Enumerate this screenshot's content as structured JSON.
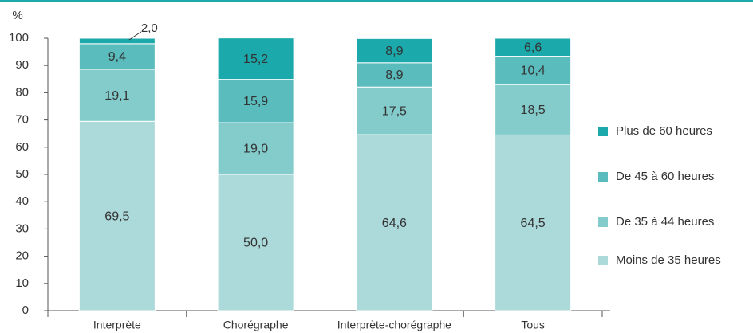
{
  "chart_data": {
    "type": "stacked_bar",
    "y_label": "%",
    "categories": [
      "Interprète",
      "Chorégraphe",
      "Interprète-chorégraphe",
      "Tous"
    ],
    "series": [
      {
        "name": "Moins de 35 heures",
        "color": "#acd9da",
        "values": [
          69.5,
          50.0,
          64.6,
          64.5
        ],
        "value_labels": [
          "69,5",
          "50,0",
          "64,6",
          "64,5"
        ]
      },
      {
        "name": "De 35 à 44 heures",
        "color": "#84cbcb",
        "values": [
          19.1,
          19.0,
          17.5,
          18.5
        ],
        "value_labels": [
          "19,1",
          "19,0",
          "17,5",
          "18,5"
        ]
      },
      {
        "name": "De 45 à 60 heures",
        "color": "#5bbcbd",
        "values": [
          9.4,
          15.9,
          8.9,
          10.4
        ],
        "value_labels": [
          "9,4",
          "15,9",
          "8,9",
          "10,4"
        ]
      },
      {
        "name": "Plus de 60 heures",
        "color": "#1ba9ab",
        "values": [
          2.0,
          15.2,
          8.9,
          6.6
        ],
        "value_labels": [
          "2,0",
          "15,2",
          "8,9",
          "6,6"
        ]
      }
    ],
    "ylim": [
      0,
      100
    ],
    "yticks": [
      0,
      10,
      20,
      30,
      40,
      50,
      60,
      70,
      80,
      90,
      100
    ],
    "grid": false,
    "legend": "right"
  }
}
